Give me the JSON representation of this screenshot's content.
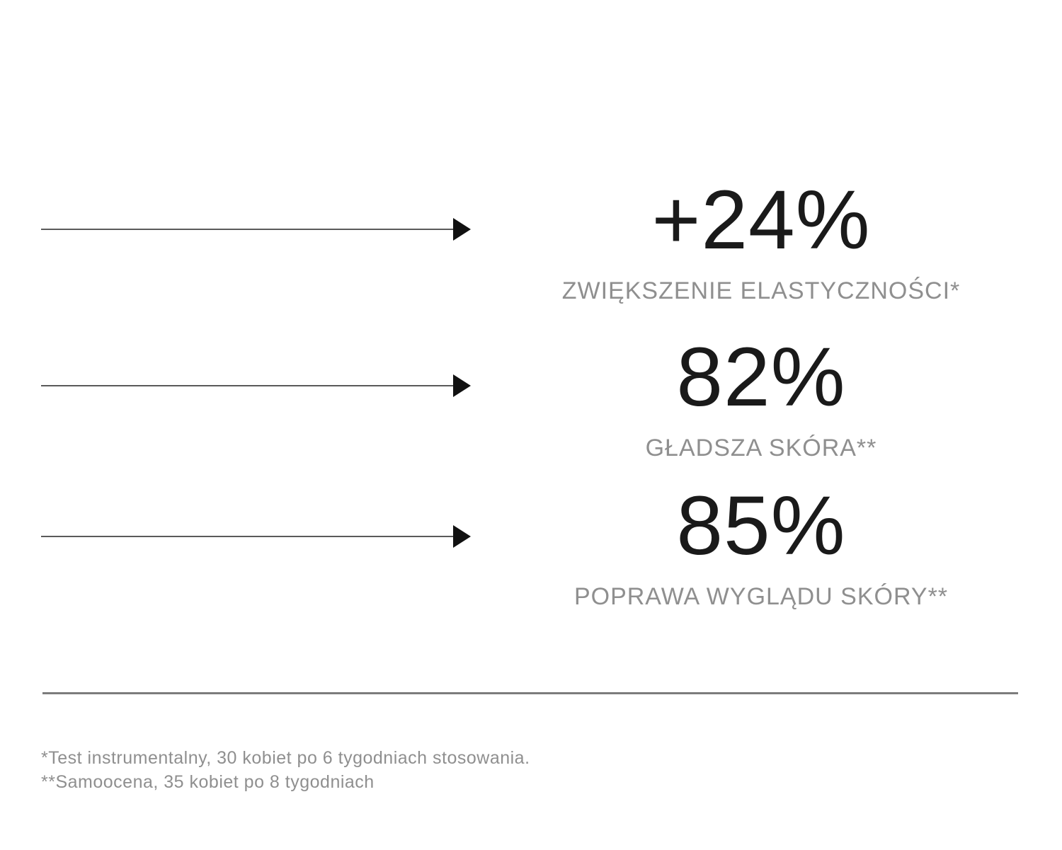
{
  "stats": [
    {
      "value": "+24%",
      "label": "ZWIĘKSZENIE ELASTYCZNOŚCI*"
    },
    {
      "value": "82%",
      "label": "GŁADSZA SKÓRA**"
    },
    {
      "value": "85%",
      "label": "POPRAWA WYGLĄDU SKÓRY**"
    }
  ],
  "footnotes": [
    "*Test instrumentalny, 30 kobiet po 6 tygodniach stosowania.",
    "**Samoocena, 35 kobiet po 8 tygodniach"
  ],
  "icons": {
    "arrow_right": "right-pointing-triangle"
  },
  "colors": {
    "background": "#ffffff",
    "value": "#1a1a1a",
    "label": "#8f8f8f",
    "footnote": "#8f8f8f",
    "arrow_line": "#5a5a5a",
    "arrow_head": "#111111",
    "divider": "#7c7c7c"
  }
}
